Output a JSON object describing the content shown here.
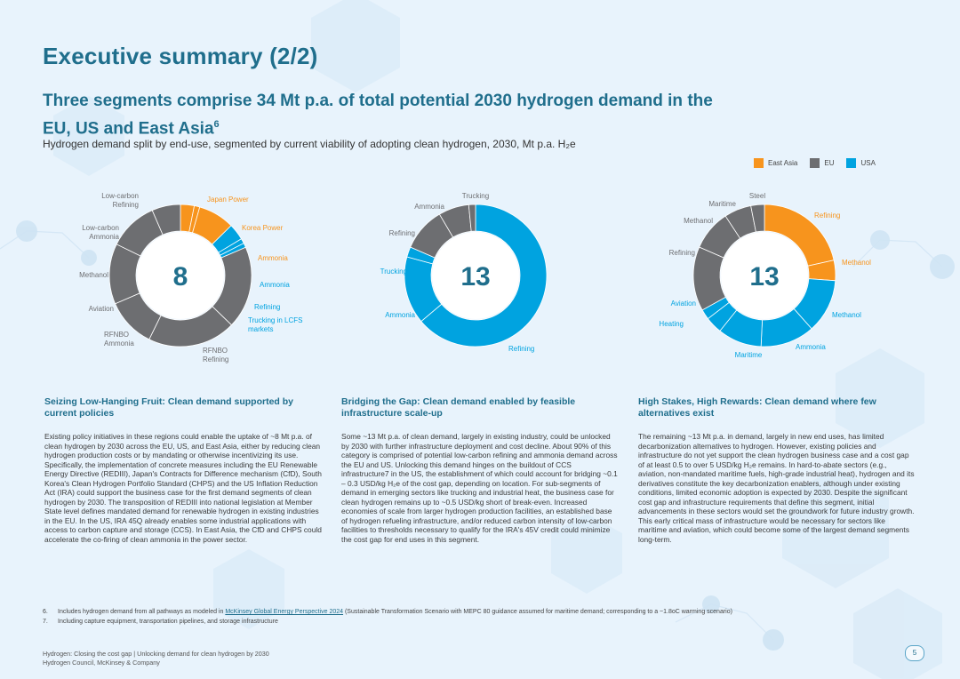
{
  "page": {
    "title": "Executive summary (2/2)",
    "subtitle": "Three segments comprise 34 Mt p.a. of total potential 2030 hydrogen demand in the EU, US and East Asia",
    "subtitle_sup": "6",
    "description": "Hydrogen demand split by end-use, segmented by current viability of adopting clean hydrogen, 2030, Mt p.a. H₂e",
    "page_number": "5"
  },
  "legend": [
    {
      "label": "East Asia",
      "color": "#f7941d"
    },
    {
      "label": "EU",
      "color": "#6d6e71"
    },
    {
      "label": "USA",
      "color": "#00a3e0"
    }
  ],
  "chart_data": [
    {
      "type": "pie",
      "title": "Seizing Low-Hanging Fruit",
      "total": "8",
      "slices": [
        {
          "label": "Japan Power",
          "value": 0.25,
          "region": "East Asia"
        },
        {
          "label": "Korea Power",
          "value": 0.1,
          "region": "East Asia"
        },
        {
          "label": "Ammonia",
          "value": 0.66,
          "region": "East Asia"
        },
        {
          "label": "Ammonia",
          "value": 0.3,
          "region": "USA"
        },
        {
          "label": "Refining",
          "value": 0.09,
          "region": "USA"
        },
        {
          "label": "Trucking in LCFS markets",
          "value": 0.08,
          "region": "USA"
        },
        {
          "label": "RFNBO Refining",
          "value": 1.5,
          "region": "EU"
        },
        {
          "label": "RFNBO Ammonia",
          "value": 1.6,
          "region": "EU"
        },
        {
          "label": "Aviation",
          "value": 0.9,
          "region": "EU"
        },
        {
          "label": "Methanol",
          "value": 1.1,
          "region": "EU"
        },
        {
          "label": "Low-carbon Ammonia",
          "value": 0.9,
          "region": "EU"
        },
        {
          "label": "Low-carbon Refining",
          "value": 0.52,
          "region": "EU"
        }
      ],
      "labels": [
        {
          "text": "Low-carbon\nRefining",
          "color": "#6d6e71",
          "anchor": "end"
        },
        {
          "text": "Japan Power",
          "color": "#f7941d",
          "anchor": "start"
        },
        {
          "text": "Low-carbon\nAmmonia",
          "color": "#6d6e71",
          "anchor": "end"
        },
        {
          "text": "Korea Power",
          "color": "#f7941d",
          "anchor": "start"
        },
        {
          "text": "Ammonia",
          "color": "#f7941d",
          "anchor": "start"
        },
        {
          "text": "Methanol",
          "color": "#6d6e71",
          "anchor": "end"
        },
        {
          "text": "Ammonia",
          "color": "#00a3e0",
          "anchor": "start"
        },
        {
          "text": "Aviation",
          "color": "#6d6e71",
          "anchor": "end"
        },
        {
          "text": "Refining",
          "color": "#00a3e0",
          "anchor": "start"
        },
        {
          "text": "Trucking in LCFS\nmarkets",
          "color": "#00a3e0",
          "anchor": "start"
        },
        {
          "text": "RFNBO\nAmmonia",
          "color": "#6d6e71",
          "anchor": "start"
        },
        {
          "text": "RFNBO\nRefining",
          "color": "#6d6e71",
          "anchor": "start"
        }
      ]
    },
    {
      "type": "pie",
      "title": "Bridging the Gap",
      "total": "13",
      "slices": [
        {
          "label": "Refining",
          "value": 8.3,
          "region": "USA"
        },
        {
          "label": "Ammonia",
          "value": 2.0,
          "region": "USA"
        },
        {
          "label": "Trucking",
          "value": 0.3,
          "region": "USA"
        },
        {
          "label": "Refining",
          "value": 1.3,
          "region": "EU"
        },
        {
          "label": "Ammonia",
          "value": 0.9,
          "region": "EU"
        },
        {
          "label": "Trucking",
          "value": 0.2,
          "region": "EU"
        }
      ],
      "labels": [
        {
          "text": "Trucking",
          "color": "#6d6e71",
          "anchor": "middle"
        },
        {
          "text": "Ammonia",
          "color": "#6d6e71",
          "anchor": "end"
        },
        {
          "text": "Refining",
          "color": "#6d6e71",
          "anchor": "end"
        },
        {
          "text": "Trucking",
          "color": "#00a3e0",
          "anchor": "end"
        },
        {
          "text": "Ammonia",
          "color": "#00a3e0",
          "anchor": "end"
        },
        {
          "text": "Refining",
          "color": "#00a3e0",
          "anchor": "start"
        }
      ]
    },
    {
      "type": "pie",
      "title": "High Stakes, High Rewards",
      "total": "13",
      "slices": [
        {
          "label": "Refining",
          "value": 2.8,
          "region": "East Asia"
        },
        {
          "label": "Methanol",
          "value": 0.6,
          "region": "East Asia"
        },
        {
          "label": "Methanol",
          "value": 1.6,
          "region": "USA"
        },
        {
          "label": "Ammonia",
          "value": 1.6,
          "region": "USA"
        },
        {
          "label": "Maritime",
          "value": 1.3,
          "region": "USA"
        },
        {
          "label": "Heating",
          "value": 0.5,
          "region": "USA"
        },
        {
          "label": "Aviation",
          "value": 0.3,
          "region": "USA"
        },
        {
          "label": "Refining",
          "value": 1.9,
          "region": "EU"
        },
        {
          "label": "Methanol",
          "value": 1.2,
          "region": "EU"
        },
        {
          "label": "Maritime",
          "value": 0.8,
          "region": "EU"
        },
        {
          "label": "Steel",
          "value": 0.4,
          "region": "EU"
        }
      ],
      "labels": [
        {
          "text": "Steel",
          "color": "#6d6e71",
          "anchor": "middle"
        },
        {
          "text": "Maritime",
          "color": "#6d6e71",
          "anchor": "end"
        },
        {
          "text": "Refining",
          "color": "#f7941d",
          "anchor": "start"
        },
        {
          "text": "Methanol",
          "color": "#6d6e71",
          "anchor": "end"
        },
        {
          "text": "Refining",
          "color": "#6d6e71",
          "anchor": "end"
        },
        {
          "text": "Methanol",
          "color": "#f7941d",
          "anchor": "start"
        },
        {
          "text": "Aviation",
          "color": "#00a3e0",
          "anchor": "end"
        },
        {
          "text": "Methanol",
          "color": "#00a3e0",
          "anchor": "start"
        },
        {
          "text": "Heating",
          "color": "#00a3e0",
          "anchor": "end"
        },
        {
          "text": "Ammonia",
          "color": "#00a3e0",
          "anchor": "start"
        },
        {
          "text": "Maritime",
          "color": "#00a3e0",
          "anchor": "middle"
        }
      ]
    }
  ],
  "columns": [
    {
      "title": "Seizing Low-Hanging Fruit: Clean demand supported by current policies",
      "body": "Existing policy initiatives in these regions could enable the uptake of ~8 Mt p.a. of clean hydrogen by 2030 across the EU, US, and East Asia, either by reducing clean hydrogen production costs or by mandating or otherwise incentivizing its use. Specifically, the implementation of concrete measures including the EU Renewable Energy Directive (REDIII), Japan's Contracts for Difference mechanism (CfD), South Korea's Clean Hydrogen Portfolio Standard (CHPS) and the US Inflation Reduction Act (IRA) could support the business case for the first demand segments of clean hydrogen by 2030. The transposition of REDIII into national legislation at Member State level defines mandated demand for renewable hydrogen in existing industries in the EU. In the US, IRA 45Q already enables some industrial applications with access to carbon capture and storage (CCS). In East Asia, the CfD and CHPS could accelerate the co-firing of clean ammonia in the power sector."
    },
    {
      "title": "Bridging the Gap: Clean demand enabled by feasible infrastructure scale-up",
      "body": "Some ~13 Mt p.a. of clean demand, largely in existing industry, could be unlocked by 2030 with further infrastructure deployment and cost decline. About 90% of this category is comprised of potential low-carbon refining and ammonia demand across the EU and US. Unlocking this demand hinges on the buildout of CCS infrastructure7 in the US, the establishment of which could account for bridging ~0.1 – 0.3 USD/kg H₂e of the cost gap, depending on location. For sub-segments of demand in emerging sectors like trucking and industrial heat, the business case for clean hydrogen remains up to ~0.5 USD/kg short of break-even. Increased economies of scale from larger hydrogen production facilities, an established base of hydrogen refueling infrastructure, and/or reduced carbon intensity of low-carbon facilities to thresholds necessary to qualify for the IRA's 45V credit could minimize the cost gap for end uses in this segment."
    },
    {
      "title": "High Stakes, High Rewards: Clean demand where few alternatives exist",
      "body": "The remaining ~13 Mt p.a. in demand, largely in new end uses, has limited decarbonization alternatives to hydrogen. However, existing policies and infrastructure do not yet support the clean hydrogen business case and a cost gap of at least 0.5 to over 5 USD/kg H₂e remains. In hard-to-abate sectors (e.g., aviation, non-mandated maritime fuels, high-grade industrial heat), hydrogen and its derivatives constitute the key decarbonization enablers, although under existing conditions, limited economic adoption is expected by 2030. Despite the significant cost gap and infrastructure requirements that define this segment, initial advancements in these sectors would set the groundwork for future industry growth. This early critical mass of infrastructure would be necessary for sectors like maritime and aviation, which could become some of the largest demand segments long-term."
    }
  ],
  "footnotes": [
    {
      "num": "6.",
      "pre": "Includes hydrogen demand from all pathways as modeled in ",
      "link": "McKinsey Global Energy Perspective 2024",
      "post": " (Sustainable Transformation Scenario with MEPC 80 guidance assumed for maritime demand; corresponding to a ~1.8oC warming scenario)"
    },
    {
      "num": "7.",
      "pre": "Including capture equipment, transportation pipelines, and storage infrastructure",
      "link": "",
      "post": ""
    }
  ],
  "footer": {
    "line1": "Hydrogen: Closing the cost gap | Unlocking demand for clean hydrogen by 2030",
    "line2": "Hydrogen Council, McKinsey & Company"
  }
}
